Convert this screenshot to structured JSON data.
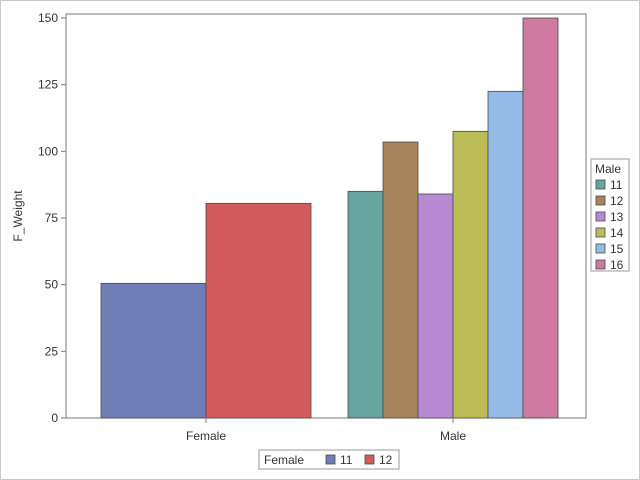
{
  "chart_data": {
    "type": "bar",
    "ylabel": "F_Weight",
    "xlabel": "",
    "ylim": [
      0,
      150
    ],
    "yticks": [
      0,
      25,
      50,
      75,
      100,
      125,
      150
    ],
    "grid": false,
    "groups": [
      {
        "category": "Female",
        "bars": [
          {
            "series": "11",
            "value": 50.5,
            "color": "#6f7eb7"
          },
          {
            "series": "12",
            "value": 80.5,
            "color": "#d25b5b"
          }
        ]
      },
      {
        "category": "Male",
        "bars": [
          {
            "series": "11",
            "value": 85,
            "color": "#66a5a0"
          },
          {
            "series": "12",
            "value": 103.5,
            "color": "#a8845a"
          },
          {
            "series": "13",
            "value": 84,
            "color": "#b689d2"
          },
          {
            "series": "14",
            "value": 107.5,
            "color": "#bdbd57"
          },
          {
            "series": "15",
            "value": 122.5,
            "color": "#94bae5"
          },
          {
            "series": "16",
            "value": 150,
            "color": "#cf7aa0"
          }
        ]
      }
    ],
    "legends": [
      {
        "title": "Male",
        "placement": "right",
        "entries": [
          {
            "label": "11",
            "color": "#66a5a0"
          },
          {
            "label": "12",
            "color": "#a8845a"
          },
          {
            "label": "13",
            "color": "#b689d2"
          },
          {
            "label": "14",
            "color": "#bdbd57"
          },
          {
            "label": "15",
            "color": "#94bae5"
          },
          {
            "label": "16",
            "color": "#cf7aa0"
          }
        ]
      },
      {
        "title": "Female",
        "placement": "bottom",
        "entries": [
          {
            "label": "11",
            "color": "#6f7eb7"
          },
          {
            "label": "12",
            "color": "#d25b5b"
          }
        ]
      }
    ]
  }
}
